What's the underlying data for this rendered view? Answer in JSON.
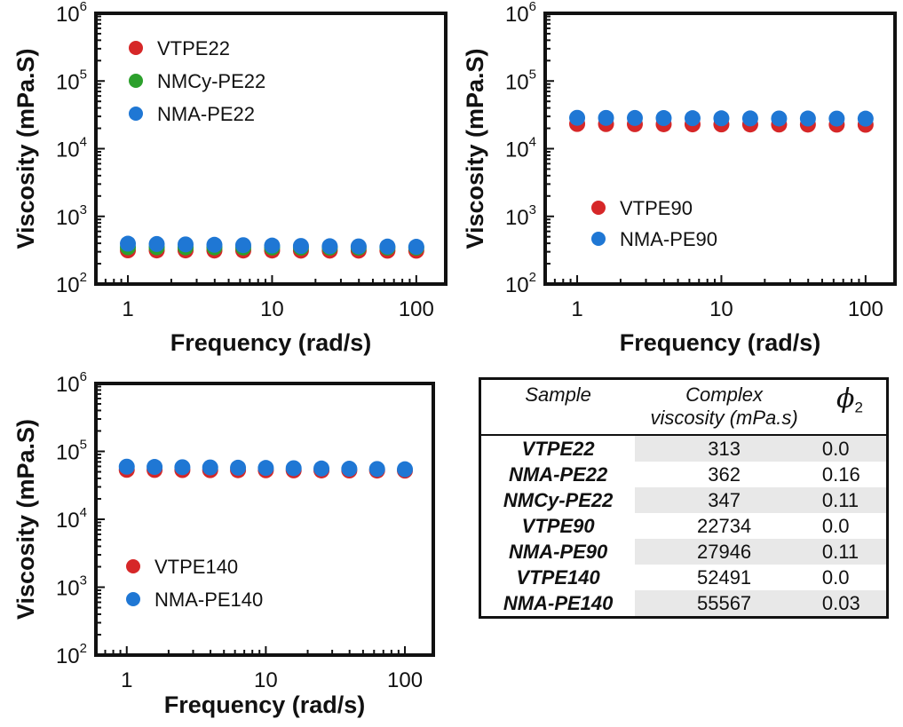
{
  "chart_data": [
    {
      "type": "scatter",
      "xscale": "log",
      "yscale": "log",
      "xlim": [
        0.6,
        160
      ],
      "ylim": [
        100,
        1000000
      ],
      "xlabel": "Frequency (rad/s)",
      "ylabel": "Viscosity (mPa.S)",
      "x_ticks": [
        "1",
        "10",
        "100"
      ],
      "y_ticks": [
        {
          "base": "10",
          "exp": "2"
        },
        {
          "base": "10",
          "exp": "3"
        },
        {
          "base": "10",
          "exp": "4"
        },
        {
          "base": "10",
          "exp": "5"
        },
        {
          "base": "10",
          "exp": "6"
        }
      ],
      "grid": false,
      "legend_position": "top-left",
      "x": [
        1,
        1.585,
        2.512,
        3.981,
        6.31,
        10,
        15.85,
        25.12,
        39.81,
        63.1,
        100
      ],
      "series": [
        {
          "name": "VTPE22",
          "color": "#d62728",
          "values": [
            315,
            314,
            314,
            313,
            313,
            313,
            312,
            312,
            312,
            311,
            311
          ]
        },
        {
          "name": "NMCy-PE22",
          "color": "#2ca02c",
          "values": [
            350,
            349,
            348,
            348,
            347,
            347,
            346,
            346,
            345,
            345,
            344
          ]
        },
        {
          "name": "NMA-PE22",
          "color": "#1f77d4",
          "values": [
            395,
            390,
            385,
            380,
            375,
            370,
            365,
            362,
            360,
            358,
            355
          ]
        }
      ]
    },
    {
      "type": "scatter",
      "xscale": "log",
      "yscale": "log",
      "xlim": [
        0.6,
        160
      ],
      "ylim": [
        100,
        1000000
      ],
      "xlabel": "Frequency (rad/s)",
      "ylabel": "Viscosity (mPa.S)",
      "x_ticks": [
        "1",
        "10",
        "100"
      ],
      "y_ticks": [
        {
          "base": "10",
          "exp": "2"
        },
        {
          "base": "10",
          "exp": "3"
        },
        {
          "base": "10",
          "exp": "4"
        },
        {
          "base": "10",
          "exp": "5"
        },
        {
          "base": "10",
          "exp": "6"
        }
      ],
      "grid": false,
      "legend_position": "bottom-left",
      "x": [
        1,
        1.585,
        2.512,
        3.981,
        6.31,
        10,
        15.85,
        25.12,
        39.81,
        63.1,
        100
      ],
      "series": [
        {
          "name": "VTPE90",
          "color": "#d62728",
          "values": [
            23200,
            23100,
            23000,
            22950,
            22900,
            22850,
            22800,
            22750,
            22700,
            22650,
            22600
          ]
        },
        {
          "name": "NMA-PE90",
          "color": "#1f77d4",
          "values": [
            28600,
            28500,
            28400,
            28300,
            28200,
            28100,
            28000,
            27950,
            27900,
            27850,
            27800
          ]
        }
      ]
    },
    {
      "type": "scatter",
      "xscale": "log",
      "yscale": "log",
      "xlim": [
        0.6,
        160
      ],
      "ylim": [
        100,
        1000000
      ],
      "xlabel": "Frequency (rad/s)",
      "ylabel": "Viscosity (mPa.S)",
      "x_ticks": [
        "1",
        "10",
        "100"
      ],
      "y_ticks": [
        {
          "base": "10",
          "exp": "2"
        },
        {
          "base": "10",
          "exp": "3"
        },
        {
          "base": "10",
          "exp": "4"
        },
        {
          "base": "10",
          "exp": "5"
        },
        {
          "base": "10",
          "exp": "6"
        }
      ],
      "grid": false,
      "legend_position": "bottom-left",
      "x": [
        1,
        1.585,
        2.512,
        3.981,
        6.31,
        10,
        15.85,
        25.12,
        39.81,
        63.1,
        100
      ],
      "series": [
        {
          "name": "VTPE140",
          "color": "#d62728",
          "values": [
            53500,
            53300,
            53100,
            52900,
            52800,
            52700,
            52500,
            52400,
            52300,
            52200,
            52100
          ]
        },
        {
          "name": "NMA-PE140",
          "color": "#1f77d4",
          "values": [
            59500,
            59000,
            58500,
            58000,
            57500,
            57000,
            56500,
            56000,
            55500,
            55000,
            54500
          ]
        }
      ]
    }
  ],
  "table": {
    "headers": {
      "sample": "Sample",
      "visc_line1": "Complex",
      "visc_line2": "viscosity (mPa.s)",
      "phi": "ϕ",
      "phi_sub": "2"
    },
    "rows": [
      {
        "sample": "VTPE22",
        "viscosity": "313",
        "phi": "0.0"
      },
      {
        "sample": "NMA-PE22",
        "viscosity": "362",
        "phi": "0.16"
      },
      {
        "sample": "NMCy-PE22",
        "viscosity": "347",
        "phi": "0.11"
      },
      {
        "sample": "VTPE90",
        "viscosity": "22734",
        "phi": "0.0"
      },
      {
        "sample": "NMA-PE90",
        "viscosity": "27946",
        "phi": "0.11"
      },
      {
        "sample": "VTPE140",
        "viscosity": "52491",
        "phi": "0.0"
      },
      {
        "sample": "NMA-PE140",
        "viscosity": "55567",
        "phi": "0.03"
      }
    ]
  }
}
